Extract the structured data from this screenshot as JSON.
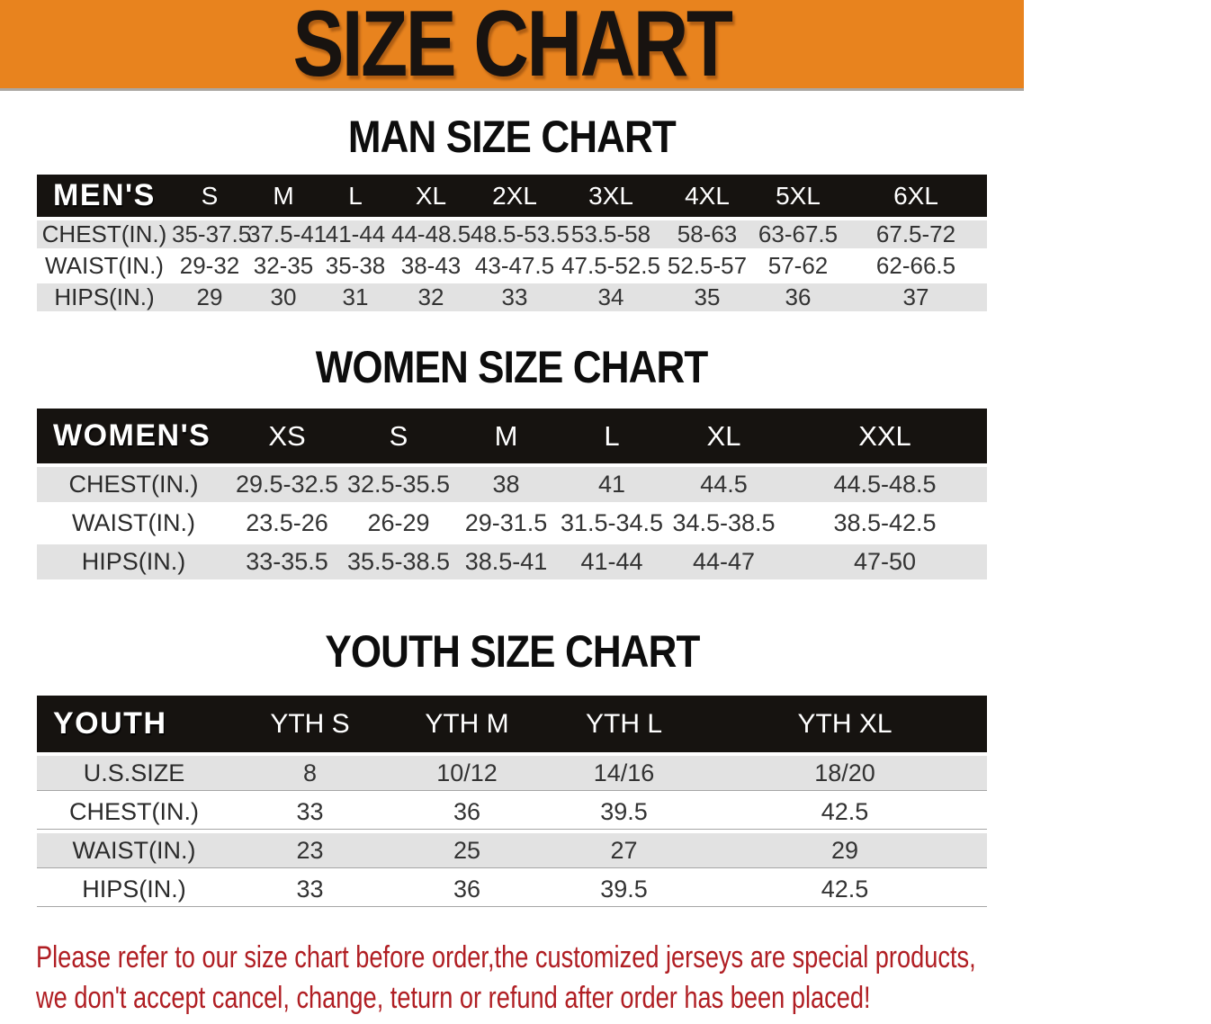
{
  "banner": {
    "title": "SIZE CHART"
  },
  "sections": {
    "men": {
      "heading": "MAN SIZE CHART",
      "table": {
        "label": "MEN'S",
        "columns": [
          "S",
          "M",
          "L",
          "XL",
          "2XL",
          "3XL",
          "4XL",
          "5XL",
          "6XL"
        ],
        "rows": [
          {
            "label": "CHEST(IN.)",
            "values": [
              "35-37.5",
              "37.5-41",
              "41-44",
              "44-48.5",
              "48.5-53.5",
              "53.5-58",
              "58-63",
              "63-67.5",
              "67.5-72"
            ]
          },
          {
            "label": "WAIST(IN.)",
            "values": [
              "29-32",
              "32-35",
              "35-38",
              "38-43",
              "43-47.5",
              "47.5-52.5",
              "52.5-57",
              "57-62",
              "62-66.5"
            ]
          },
          {
            "label": "HIPS(IN.)",
            "values": [
              "29",
              "30",
              "31",
              "32",
              "33",
              "34",
              "35",
              "36",
              "37"
            ]
          }
        ]
      }
    },
    "women": {
      "heading": "WOMEN SIZE CHART",
      "table": {
        "label": "WOMEN'S",
        "columns": [
          "XS",
          "S",
          "M",
          "L",
          "XL",
          "XXL"
        ],
        "rows": [
          {
            "label": "CHEST(IN.)",
            "values": [
              "29.5-32.5",
              "32.5-35.5",
              "38",
              "41",
              "44.5",
              "44.5-48.5"
            ]
          },
          {
            "label": "WAIST(IN.)",
            "values": [
              "23.5-26",
              "26-29",
              "29-31.5",
              "31.5-34.5",
              "34.5-38.5",
              "38.5-42.5"
            ]
          },
          {
            "label": "HIPS(IN.)",
            "values": [
              "33-35.5",
              "35.5-38.5",
              "38.5-41",
              "41-44",
              "44-47",
              "47-50"
            ]
          }
        ]
      }
    },
    "youth": {
      "heading": "YOUTH SIZE CHART",
      "table": {
        "label": "YOUTH",
        "columns": [
          "YTH S",
          "YTH M",
          "YTH L",
          "YTH XL"
        ],
        "rows": [
          {
            "label": "U.S.SIZE",
            "values": [
              "8",
              "10/12",
              "14/16",
              "18/20"
            ]
          },
          {
            "label": "CHEST(IN.)",
            "values": [
              "33",
              "36",
              "39.5",
              "42.5"
            ]
          },
          {
            "label": "WAIST(IN.)",
            "values": [
              "23",
              "25",
              "27",
              "29"
            ]
          },
          {
            "label": "HIPS(IN.)",
            "values": [
              "33",
              "36",
              "39.5",
              "42.5"
            ]
          }
        ]
      }
    }
  },
  "disclaimer": {
    "line1": "Please refer to our size chart before order,the customized jerseys are special products,",
    "line2": "we don't accept cancel, change, teturn or refund after order has been placed!"
  },
  "colors": {
    "banner_bg": "#E8831E",
    "banner_title_text": "#181310",
    "header_bar_bg": "#161310",
    "header_bar_text": "#FFFFFF",
    "row_stripe": "#E2E2E2",
    "body_text": "#333333",
    "disclaimer_text": "#B01E23"
  }
}
